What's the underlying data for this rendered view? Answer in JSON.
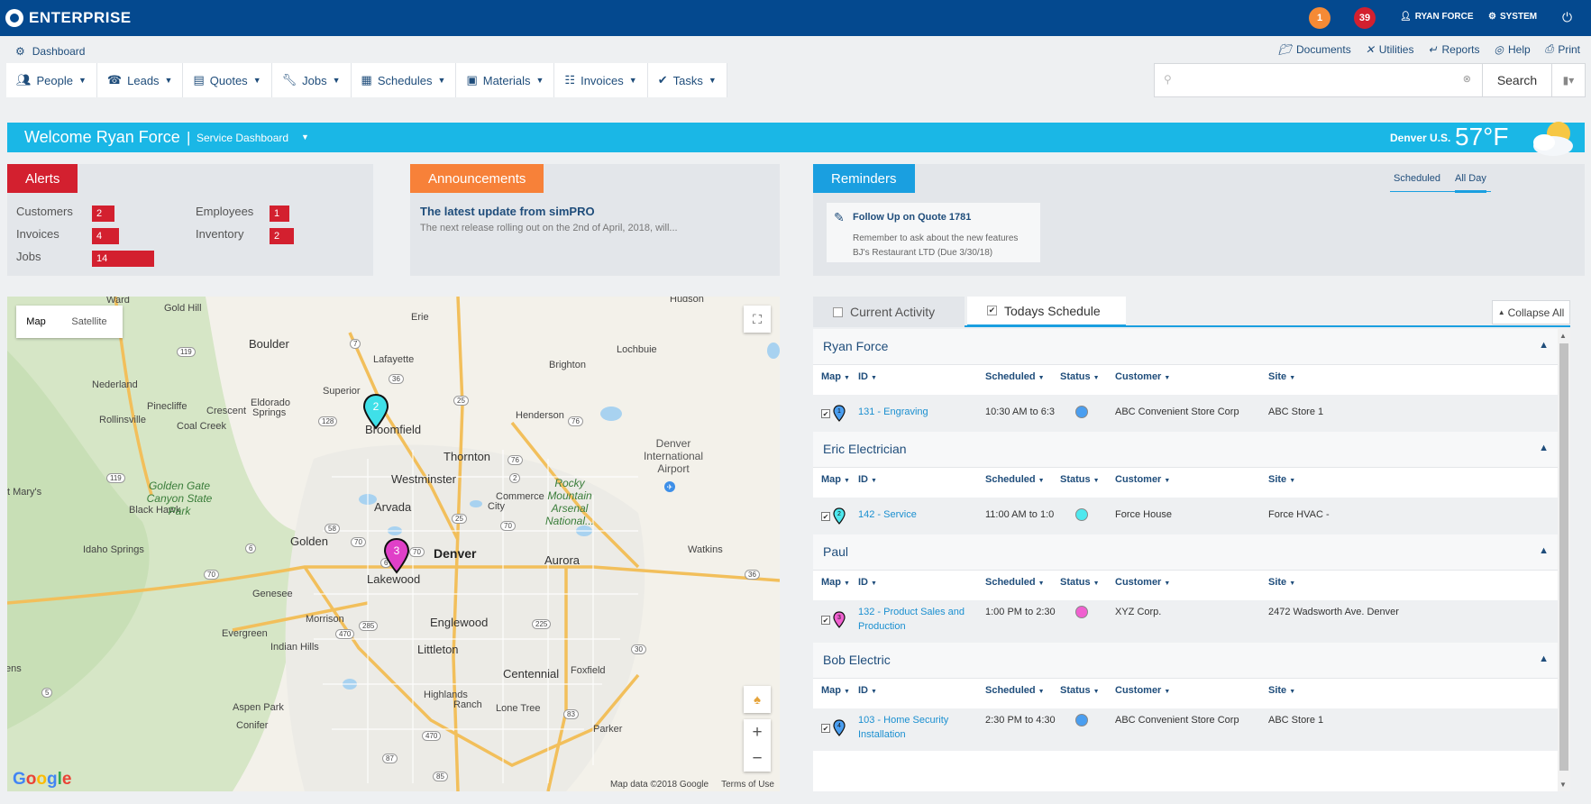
{
  "topbar": {
    "brand": "ENTERPRISE",
    "badge_orange": "1",
    "badge_red": "39",
    "user": "RYAN FORCE",
    "system": "SYSTEM"
  },
  "subheader": {
    "dashboard": "Dashboard",
    "utils": [
      "Documents",
      "Utilities",
      "Reports",
      "Help",
      "Print"
    ],
    "nav": [
      "People",
      "Leads",
      "Quotes",
      "Jobs",
      "Schedules",
      "Materials",
      "Invoices",
      "Tasks"
    ],
    "search_placeholder": "",
    "search_button": "Search"
  },
  "welcome": {
    "title": "Welcome Ryan Force",
    "separator": "|",
    "subtitle": "Service Dashboard",
    "location": "Denver U.S.",
    "temperature": "57°F"
  },
  "alerts": {
    "title": "Alerts",
    "items": [
      {
        "label": "Customers",
        "count": "2"
      },
      {
        "label": "Invoices",
        "count": "4"
      },
      {
        "label": "Jobs",
        "count": "14"
      },
      {
        "label": "Employees",
        "count": "1"
      },
      {
        "label": "Inventory",
        "count": "2"
      }
    ]
  },
  "announcements": {
    "title": "Announcements",
    "headline": "The latest update from simPRO",
    "body": "The next release rolling out on the 2nd of April, 2018, will..."
  },
  "reminders": {
    "title": "Reminders",
    "tabs": [
      "Scheduled",
      "All Day"
    ],
    "card_title": "Follow Up on Quote 1781",
    "card_line1": "Remember to ask about the new features",
    "card_line2": "BJ's Restaurant LTD (Due 3/30/18)"
  },
  "map": {
    "type_map": "Map",
    "type_satellite": "Satellite",
    "footer_data": "Map data ©2018 Google",
    "footer_terms": "Terms of Use",
    "google": [
      "G",
      "o",
      "o",
      "g",
      "l",
      "e"
    ],
    "places": {
      "boulder": "Boulder",
      "broomfield": "Broomfield",
      "denver": "Denver",
      "aurora": "Aurora",
      "lakewood": "Lakewood",
      "thornton": "Thornton",
      "westminster": "Westminster",
      "arvada": "Arvada",
      "golden": "Golden",
      "englewood": "Englewood",
      "littleton": "Littleton",
      "centennial": "Centennial",
      "brighton": "Brighton",
      "lochbuie": "Lochbuie",
      "erie": "Erie",
      "lafayette": "Lafayette",
      "superior": "Superior",
      "henderson": "Henderson",
      "commerce": "Commerce",
      "commerce2": "City",
      "hudson": "Hudson",
      "ward": "Ward",
      "goldhill": "Gold Hill",
      "nederland": "Nederland",
      "pinecliffe": "Pinecliffe",
      "crescent": "Crescent",
      "eldorado": "Eldorado",
      "eldorado2": "Springs",
      "rollinsville": "Rollinsville",
      "coalcreek": "Coal Creek",
      "marys": "t Mary's",
      "blackhawk": "Black Hawk",
      "idaho": "Idaho Springs",
      "genesee": "Genesee",
      "evergreen": "Evergreen",
      "morrison": "Morrison",
      "indianhills": "Indian Hills",
      "aspenpark": "Aspen Park",
      "conifer": "Conifer",
      "highlands": "Highlands",
      "highlands2": "Ranch",
      "lonetree": "Lone Tree",
      "parker": "Parker",
      "foxfield": "Foxfield",
      "watkins": "Watkins",
      "ens": "ens",
      "dia": "Denver International Airport",
      "rocky": "Rocky Mountain Arsenal National...",
      "golden_gate": "Golden Gate Canyon State Park"
    },
    "roads": {
      "r7": "7",
      "r119a": "119",
      "r119b": "119",
      "r128": "128",
      "r36a": "36",
      "r25a": "25",
      "r25b": "25",
      "r76a": "76",
      "r76b": "76",
      "r2": "2",
      "r70a": "70",
      "r70b": "70",
      "r70c": "70",
      "r70d": "70",
      "r6a": "6",
      "r6b": "6",
      "r58": "58",
      "r36b": "36",
      "r285": "285",
      "r470a": "470",
      "r470b": "470",
      "r225": "225",
      "r30": "30",
      "r5": "5",
      "r85": "85",
      "r83": "83",
      "r87": "87"
    },
    "pins": [
      {
        "num": "2",
        "color": "#3fe0e8"
      },
      {
        "num": "3",
        "color": "#e040c8"
      }
    ]
  },
  "schedule": {
    "tab_current": "Current Activity",
    "tab_today": "Todays Schedule",
    "collapse": "Collapse All",
    "columns": [
      "Map",
      "ID",
      "Scheduled",
      "Status",
      "Customer",
      "Site"
    ],
    "groups": [
      {
        "name": "Ryan Force",
        "id_line1": "131 - Engraving",
        "id_line2": "",
        "scheduled": "10:30 AM to 6:3",
        "status_color": "#4a9ef0",
        "pin_color": "#4a9ef0",
        "pin_num": "1",
        "customer": "ABC Convenient Store Corp",
        "site": "ABC Store 1"
      },
      {
        "name": "Eric Electrician",
        "id_line1": "142 - Service",
        "id_line2": "",
        "scheduled": "11:00 AM to 1:0",
        "status_color": "#4ee8ee",
        "pin_color": "#4ee8ee",
        "pin_num": "2",
        "customer": "Force House",
        "site": "Force HVAC -"
      },
      {
        "name": "Paul",
        "id_line1": "132 - Product Sales and",
        "id_line2": "Production",
        "scheduled": "1:00 PM to 2:30",
        "status_color": "#f060d0",
        "pin_color": "#f060d0",
        "pin_num": "3",
        "customer": "XYZ Corp.",
        "site": "2472 Wadsworth Ave. Denver"
      },
      {
        "name": "Bob Electric",
        "id_line1": "103 - Home Security",
        "id_line2": "Installation",
        "scheduled": "2:30 PM to 4:30",
        "status_color": "#4a9ef0",
        "pin_color": "#4a9ef0",
        "pin_num": "4",
        "customer": "ABC Convenient Store Corp",
        "site": "ABC Store 1"
      }
    ]
  },
  "colors": {
    "topbar": "#04498f",
    "welcome": "#1ab7e6",
    "alerts": "#d3202f",
    "announcements": "#f78139",
    "reminders": "#1a9fe0"
  },
  "icons": [
    "logo-icon",
    "user-icon",
    "gear-icon",
    "power-icon",
    "dashboard-icon",
    "folder-icon",
    "tools-icon",
    "chart-icon",
    "help-icon",
    "print-icon",
    "search-icon",
    "bookmark-icon",
    "pencil-icon",
    "weather-icon",
    "fullscreen-icon",
    "pegman-icon",
    "caret-up-icon"
  ]
}
